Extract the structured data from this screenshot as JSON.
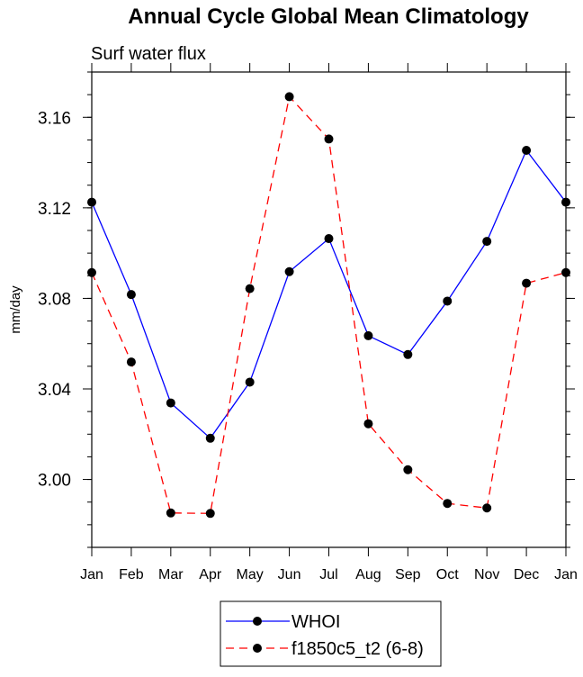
{
  "chart_data": {
    "type": "line",
    "title": "Annual Cycle Global Mean Climatology",
    "subtitle": "Surf water flux",
    "xlabel": "",
    "ylabel": "mm/day",
    "categories": [
      "Jan",
      "Feb",
      "Mar",
      "Apr",
      "May",
      "Jun",
      "Jul",
      "Aug",
      "Sep",
      "Oct",
      "Nov",
      "Dec",
      "Jan"
    ],
    "ylim": [
      2.97,
      3.18
    ],
    "yticks": [
      "3.00",
      "3.04",
      "3.08",
      "3.12",
      "3.16"
    ],
    "grid": false,
    "legend_position": "bottom-center",
    "series": [
      {
        "name": "WHOI",
        "color": "#0000ff",
        "dash": "solid",
        "values": [
          3.1225,
          3.0817,
          3.0338,
          3.0182,
          3.043,
          3.0918,
          3.1064,
          3.0635,
          3.0552,
          3.0788,
          3.1052,
          3.1454,
          3.1225
        ]
      },
      {
        "name": "f1850c5_t2 (6-8)",
        "color": "#ff0000",
        "dash": "dashed",
        "values": [
          3.0914,
          3.0519,
          2.9852,
          2.985,
          3.0843,
          3.1691,
          3.1504,
          3.0246,
          3.0043,
          2.9894,
          2.9874,
          3.0867,
          3.0914
        ]
      }
    ]
  }
}
